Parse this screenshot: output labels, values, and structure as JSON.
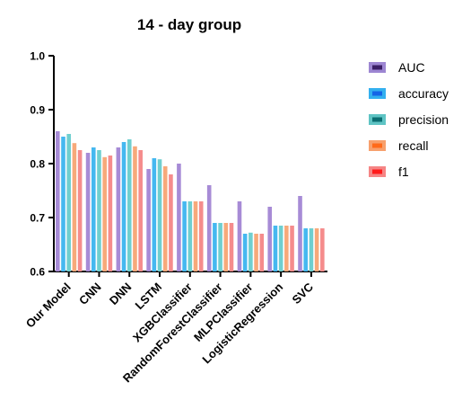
{
  "chart_data": {
    "type": "bar",
    "title": "14 - day group",
    "xlabel": "",
    "ylabel": "",
    "ylim": [
      0.6,
      1.0
    ],
    "yticks": [
      "0.6",
      "0.7",
      "0.8",
      "0.9",
      "1.0"
    ],
    "grid": false,
    "legend_position": "right",
    "categories": [
      "Our Model",
      "CNN",
      "DNN",
      "LSTM",
      "XGBClassifier",
      "RandomForestClassifier",
      "MLPClassifier",
      "LogisticRegression",
      "SVC"
    ],
    "series": [
      {
        "name": "AUC",
        "fill": "#a78bd6",
        "swatch_fill": "#9d86d2",
        "swatch_inner": "#3b1f66",
        "values": [
          0.86,
          0.82,
          0.83,
          0.79,
          0.8,
          0.76,
          0.73,
          0.72,
          0.74
        ]
      },
      {
        "name": "accuracy",
        "fill": "#45b8f0",
        "swatch_fill": "#33b0ef",
        "swatch_inner": "#1565e6",
        "values": [
          0.85,
          0.83,
          0.84,
          0.81,
          0.73,
          0.69,
          0.67,
          0.685,
          0.68
        ]
      },
      {
        "name": "precision",
        "fill": "#6fcfcf",
        "swatch_fill": "#5fc4c4",
        "swatch_inner": "#0b6e72",
        "values": [
          0.855,
          0.825,
          0.845,
          0.808,
          0.73,
          0.69,
          0.672,
          0.685,
          0.68
        ]
      },
      {
        "name": "recall",
        "fill": "#f7a97a",
        "swatch_fill": "#f7a06d",
        "swatch_inner": "#ff6a1a",
        "values": [
          0.838,
          0.812,
          0.832,
          0.795,
          0.73,
          0.69,
          0.67,
          0.685,
          0.68
        ]
      },
      {
        "name": "f1",
        "fill": "#f58c8c",
        "swatch_fill": "#f58585",
        "swatch_inner": "#ff1a1a",
        "values": [
          0.825,
          0.815,
          0.825,
          0.78,
          0.73,
          0.69,
          0.67,
          0.685,
          0.68
        ]
      }
    ]
  }
}
